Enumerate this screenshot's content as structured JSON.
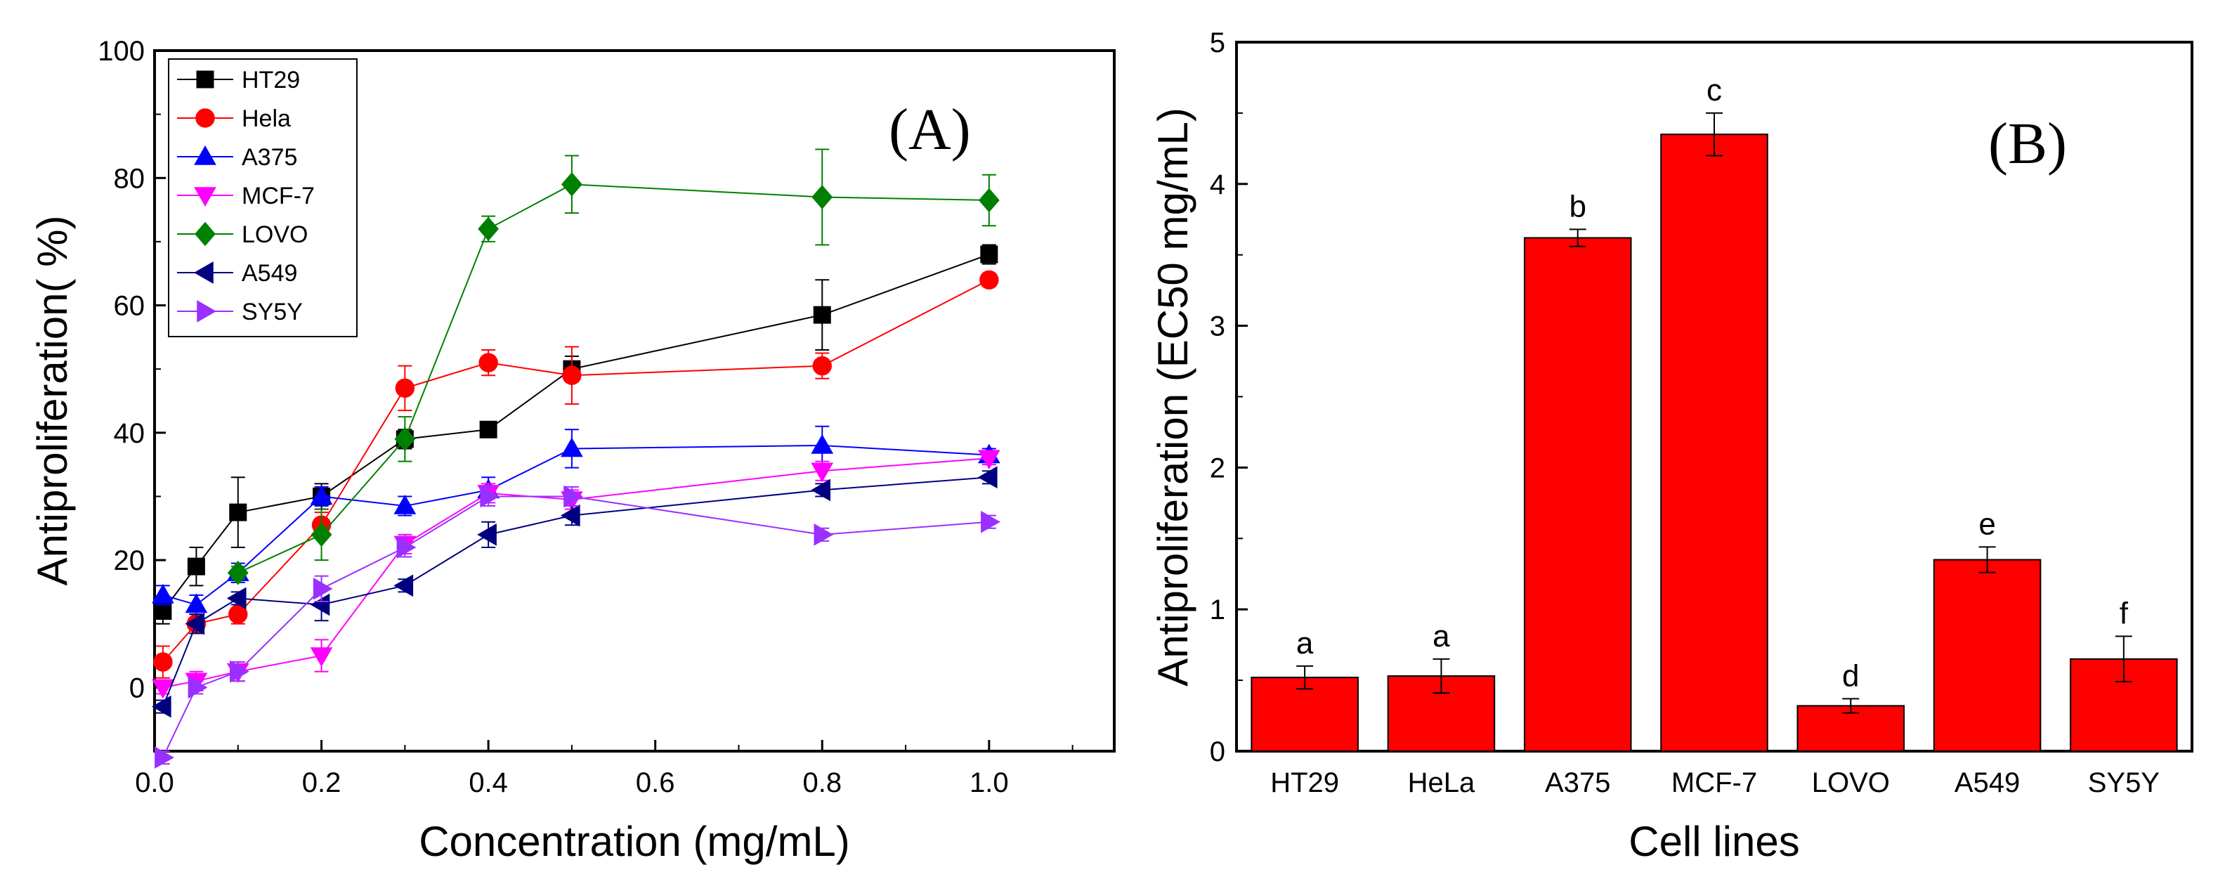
{
  "chart_data": [
    {
      "type": "line",
      "panel_label": "(A)",
      "xlabel": "Concentration (mg/mL)",
      "ylabel": "Antiproliferation(   %)",
      "xlim": [
        0,
        1.15
      ],
      "ylim": [
        -10,
        100
      ],
      "xticks": [
        "0.0",
        "0.2",
        "0.4",
        "0.6",
        "0.8",
        "1.0"
      ],
      "yticks": [
        "0",
        "20",
        "40",
        "60",
        "80",
        "100"
      ],
      "legend_position": "top-left",
      "series": [
        {
          "name": "HT29",
          "marker": "square",
          "color": "#000000",
          "x": [
            0.01,
            0.05,
            0.1,
            0.2,
            0.3,
            0.4,
            0.5,
            0.8,
            1.0
          ],
          "y": [
            12,
            19,
            27.5,
            30,
            39,
            40.5,
            50,
            58.5,
            68
          ],
          "err": [
            2,
            3,
            5.5,
            2,
            1.5,
            1,
            2,
            5.5,
            1.5
          ]
        },
        {
          "name": "Hela",
          "marker": "circle",
          "color": "#ff0000",
          "x": [
            0.01,
            0.05,
            0.1,
            0.2,
            0.3,
            0.4,
            0.5,
            0.8,
            1.0
          ],
          "y": [
            4,
            10,
            11.5,
            25.5,
            47,
            51,
            49,
            50.5,
            64
          ],
          "err": [
            2.5,
            1.5,
            1.5,
            2,
            3.5,
            2,
            4.5,
            2,
            1
          ]
        },
        {
          "name": "A375",
          "marker": "triangle-up",
          "color": "#0000ff",
          "x": [
            0.01,
            0.05,
            0.1,
            0.2,
            0.3,
            0.4,
            0.5,
            0.8,
            1.0
          ],
          "y": [
            14.5,
            13,
            18,
            30,
            28.5,
            31,
            37.5,
            38,
            36.5
          ],
          "err": [
            1.5,
            1.5,
            1.5,
            1.5,
            1.5,
            2,
            3,
            3,
            1
          ]
        },
        {
          "name": "MCF-7",
          "marker": "triangle-down",
          "color": "#ff00ff",
          "x": [
            0.01,
            0.05,
            0.1,
            0.2,
            0.3,
            0.4,
            0.5,
            0.8,
            1.0
          ],
          "y": [
            0,
            1,
            2.5,
            5,
            22.5,
            30.5,
            29.5,
            34,
            36
          ],
          "err": [
            1,
            1.5,
            1.5,
            2.5,
            1.5,
            1.5,
            1.5,
            1.5,
            1
          ]
        },
        {
          "name": "LOVO",
          "marker": "diamond",
          "color": "#008000",
          "x": [
            0.1,
            0.2,
            0.3,
            0.4,
            0.5,
            0.8,
            1.0
          ],
          "y": [
            18,
            24,
            39,
            72,
            79,
            77,
            76.5
          ],
          "err": [
            1,
            4,
            3.5,
            2,
            4.5,
            7.5,
            4
          ]
        },
        {
          "name": "A549",
          "marker": "triangle-left",
          "color": "#000080",
          "x": [
            0.01,
            0.05,
            0.1,
            0.2,
            0.3,
            0.4,
            0.5,
            0.8,
            1.0
          ],
          "y": [
            -3,
            10,
            14,
            13,
            16,
            24,
            27,
            31,
            33
          ],
          "err": [
            1,
            1.5,
            1,
            2.5,
            1,
            2,
            1.5,
            1,
            1
          ]
        },
        {
          "name": "SY5Y",
          "marker": "triangle-right",
          "color": "#9a30ff",
          "x": [
            0.01,
            0.05,
            0.1,
            0.2,
            0.3,
            0.4,
            0.5,
            0.8,
            1.0
          ],
          "y": [
            -11,
            0,
            2.5,
            15.5,
            22,
            30,
            30,
            24,
            26
          ],
          "err": [
            1,
            1,
            1.5,
            2,
            1.5,
            1.5,
            1.5,
            1,
            1
          ]
        }
      ]
    },
    {
      "type": "bar",
      "panel_label": "(B)",
      "xlabel": "Cell lines",
      "ylabel": "Antiproliferation (EC50 mg/mL)",
      "ylim": [
        0,
        5
      ],
      "yticks": [
        "0",
        "1",
        "2",
        "3",
        "4",
        "5"
      ],
      "bar_color": "#ff0000",
      "categories": [
        "HT29",
        "HeLa",
        "A375",
        "MCF-7",
        "LOVO",
        "A549",
        "SY5Y"
      ],
      "values": [
        0.52,
        0.53,
        3.62,
        4.35,
        0.32,
        1.35,
        0.65
      ],
      "errors": [
        0.08,
        0.12,
        0.06,
        0.15,
        0.05,
        0.09,
        0.16
      ],
      "letters": [
        "a",
        "a",
        "b",
        "c",
        "d",
        "e",
        "f"
      ]
    }
  ]
}
